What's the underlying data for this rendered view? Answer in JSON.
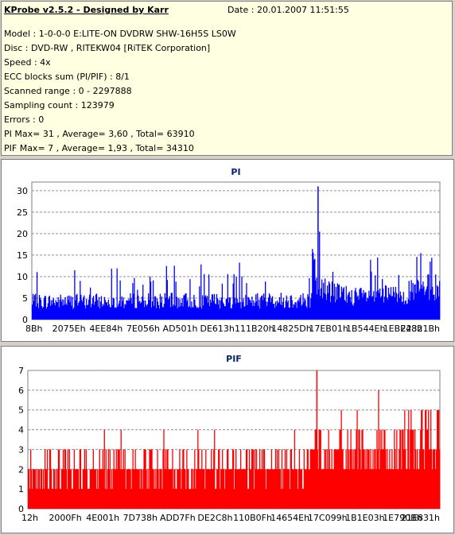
{
  "header": {
    "title": "KProbe v2.5.2 - Designed by Karr",
    "date": "Date : 20.01.2007 11:51:55",
    "lines": [
      "Model : 1-0-0-0 E:LITE-ON DVDRW SHW-16H5S  LS0W",
      "Disc : DVD-RW , RITEKW04 [RiTEK Corporation]",
      "Speed : 4x",
      "ECC blocks sum (PI/PIF) : 8/1",
      "Scanned range : 0 - 2297888",
      "Sampling count : 123979",
      "Errors : 0",
      "PI Max= 31 , Average= 3,60 , Total= 63910",
      "PIF Max= 7 , Average= 1,93 , Total= 34310"
    ]
  },
  "chart_data": [
    {
      "type": "bar",
      "title": "PI",
      "color": "#0000ff",
      "ylim": [
        0,
        32
      ],
      "yticks": [
        0,
        5,
        10,
        15,
        20,
        25,
        30
      ],
      "xticks": [
        "8Bh",
        "2075Eh",
        "4EE84h",
        "7E056h",
        "AD501h",
        "DE613h",
        "111B20h",
        "14825Dh",
        "17EB01h",
        "1B544Eh",
        "1EBE48h",
        "22321Bh"
      ],
      "grid": true,
      "max": 31,
      "average": 3.6,
      "profile": [
        {
          "x": 0.0,
          "base": 4.0,
          "peak": 11
        },
        {
          "x": 0.68,
          "base": 4.3,
          "peak": 14
        },
        {
          "x": 0.7,
          "base": 7.5,
          "peak": 31
        },
        {
          "x": 0.74,
          "base": 6.0,
          "peak": 17
        },
        {
          "x": 0.8,
          "base": 5.0,
          "peak": 13
        },
        {
          "x": 0.9,
          "base": 5.5,
          "peak": 16
        },
        {
          "x": 0.97,
          "base": 7.0,
          "peak": 22
        },
        {
          "x": 1.0,
          "base": 7.5,
          "peak": 20
        }
      ]
    },
    {
      "type": "bar",
      "title": "PIF",
      "color": "#ff0000",
      "ylim": [
        0,
        7
      ],
      "yticks": [
        0,
        1,
        2,
        3,
        4,
        5,
        6,
        7
      ],
      "xticks": [
        "12h",
        "2000Fh",
        "4E001h",
        "7D738h",
        "ADD7Fh",
        "DE2C8h",
        "110B0Fh",
        "14654Eh",
        "17C099h",
        "1B1E03h",
        "1E790Bh",
        "21E831h"
      ],
      "grid": true,
      "max": 7,
      "average": 1.93,
      "profile": [
        {
          "x": 0.0,
          "base": 1.8,
          "peak": 4
        },
        {
          "x": 0.68,
          "base": 2.0,
          "peak": 4
        },
        {
          "x": 0.7,
          "base": 3.0,
          "peak": 7
        },
        {
          "x": 0.8,
          "base": 2.6,
          "peak": 6
        },
        {
          "x": 0.9,
          "base": 2.8,
          "peak": 6
        },
        {
          "x": 1.0,
          "base": 3.5,
          "peak": 7
        }
      ]
    }
  ]
}
